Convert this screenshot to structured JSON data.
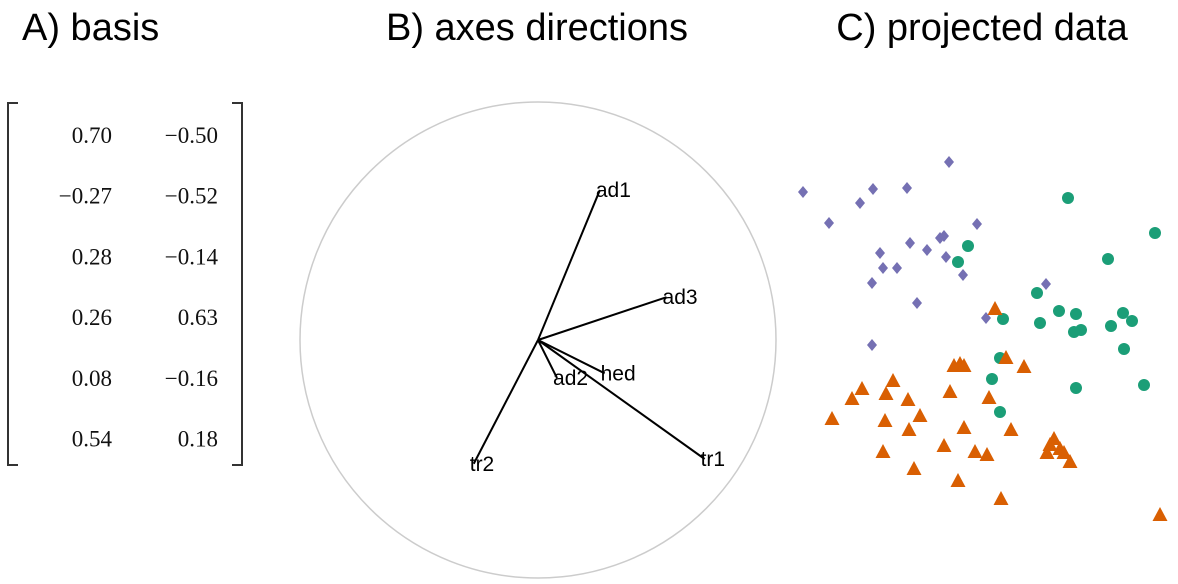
{
  "chart_data": [
    {
      "type": "matrix",
      "title": "A) basis",
      "rows": [
        [
          "0.70",
          "−0.50"
        ],
        [
          "−0.27",
          "−0.52"
        ],
        [
          "0.28",
          "−0.14"
        ],
        [
          "0.26",
          "0.63"
        ],
        [
          "0.08",
          "−0.16"
        ],
        [
          "0.54",
          "0.18"
        ]
      ]
    },
    {
      "type": "biplot",
      "title": "B) axes directions",
      "labels": [
        "tr1",
        "tr2",
        "hed",
        "ad1",
        "ad2",
        "ad3"
      ],
      "x": [
        0.7,
        -0.27,
        0.28,
        0.26,
        0.08,
        0.54
      ],
      "y": [
        -0.5,
        -0.52,
        -0.14,
        0.63,
        -0.16,
        0.18
      ]
    },
    {
      "type": "scatter",
      "title": "C) projected data",
      "xlim": [
        0,
        380
      ],
      "ylim": [
        0,
        375
      ],
      "series": [
        {
          "color": "#7570b3",
          "marker": "diamond",
          "x": [
            13,
            39,
            70,
            83,
            117,
            159,
            90,
            93,
            107,
            120,
            137,
            150,
            154,
            156,
            173,
            187,
            82,
            127,
            196,
            256,
            82
          ],
          "y": [
            333,
            302,
            322,
            336,
            337,
            363,
            272,
            257,
            257,
            282,
            275,
            287,
            289,
            268,
            250,
            301,
            242,
            222,
            207,
            241,
            180
          ]
        },
        {
          "color": "#1b9e77",
          "marker": "circle",
          "x": [
            278,
            365,
            178,
            168,
            318,
            247,
            213,
            250,
            269,
            286,
            291,
            284,
            321,
            333,
            342,
            334,
            210,
            202,
            286,
            354,
            210
          ],
          "y": [
            327,
            292,
            279,
            263,
            266,
            232,
            206,
            202,
            214,
            211,
            195,
            193,
            199,
            212,
            204,
            176,
            167,
            146,
            137,
            140,
            113
          ]
        },
        {
          "color": "#d95f02",
          "marker": "triangle",
          "x": [
            205,
            216,
            170,
            164,
            174,
            234,
            103,
            72,
            62,
            96,
            160,
            199,
            118,
            130,
            95,
            174,
            221,
            42,
            119,
            154,
            260,
            270,
            274,
            257,
            93,
            185,
            197,
            280,
            124,
            168,
            211,
            370,
            264
          ],
          "y": [
            216,
            167,
            161,
            159,
            159,
            158,
            144,
            136,
            126,
            131,
            133,
            127,
            125,
            109,
            104,
            97,
            95,
            106,
            95,
            79,
            80,
            76,
            72,
            72,
            73,
            73,
            70,
            63,
            56,
            44,
            26,
            10,
            86
          ]
        }
      ]
    }
  ]
}
